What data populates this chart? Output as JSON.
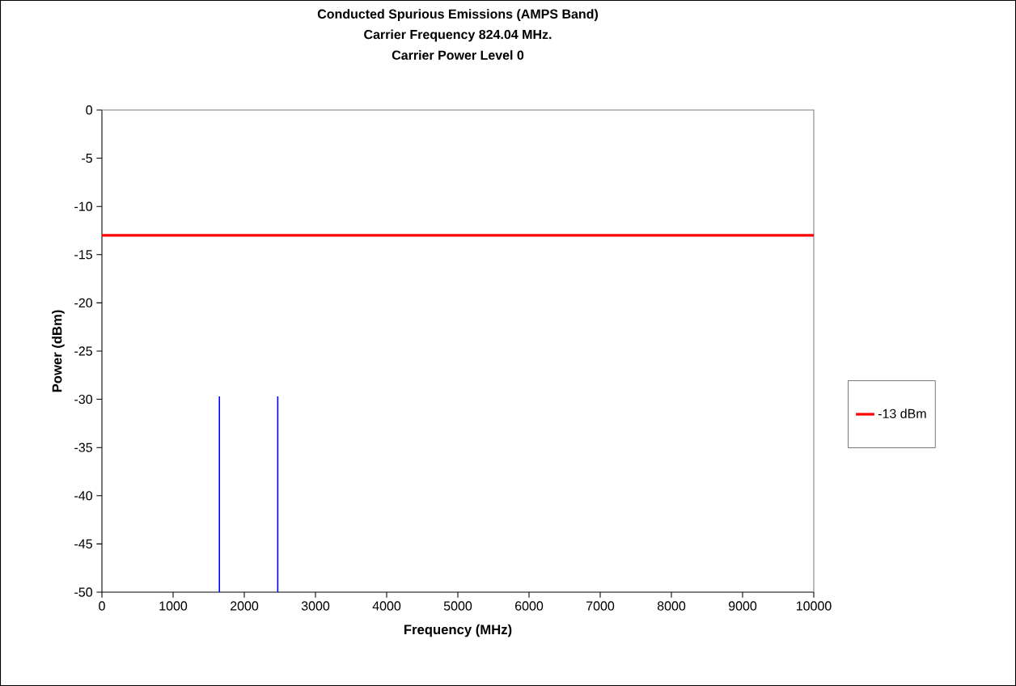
{
  "chart_data": {
    "type": "line",
    "title": "Conducted Spurious Emissions (AMPS Band)",
    "subtitle": "Carrier Frequency 824.04 MHz.",
    "annotations": [
      "Carrier Power Level 0"
    ],
    "xlabel": "Frequency (MHz)",
    "ylabel": "Power (dBm)",
    "series": [
      {
        "color": "#0000ff",
        "x": [
          1650,
          1650
        ],
        "values": [
          -50,
          -29.7
        ]
      },
      {
        "color": "#0000ff",
        "x": [
          2470,
          2470
        ],
        "values": [
          -50,
          -29.7
        ]
      },
      {
        "name": "-13 dBm",
        "color": "#ff0000",
        "x": [
          0,
          10000
        ],
        "values": [
          -13,
          -13
        ]
      }
    ],
    "xlim": [
      0,
      10000
    ],
    "xticks": [
      0,
      1000,
      2000,
      3000,
      4000,
      5000,
      6000,
      7000,
      8000,
      9000,
      10000
    ],
    "ylim": [
      -50,
      0
    ],
    "yticks": [
      0,
      -5,
      -10,
      -15,
      -20,
      -25,
      -30,
      -35,
      -40,
      -45,
      -50
    ],
    "legend": "right"
  }
}
